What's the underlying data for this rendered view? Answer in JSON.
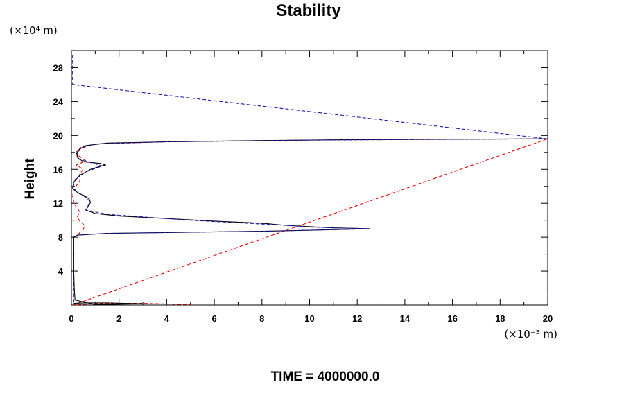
{
  "chart_data": {
    "type": "line",
    "title": "Stability",
    "ylabel": "Height",
    "xlabel": "",
    "x_unit": "(×10⁻⁵ m)",
    "y_unit": "(×10⁴ m)",
    "footer": "TIME = 4000000.0",
    "xlim": [
      0,
      20
    ],
    "ylim": [
      0,
      30
    ],
    "x_ticks": [
      "0",
      "2",
      "4",
      "6",
      "8",
      "10",
      "12",
      "14",
      "16",
      "18",
      "20"
    ],
    "y_ticks": [
      "4",
      "8",
      "12",
      "16",
      "20",
      "24",
      "28"
    ],
    "grid": false,
    "legend": "none",
    "colors": {
      "solid": "#000000",
      "blue_dashed": "#1a1aaa",
      "red_dashed": "#e60000",
      "axis": "#000000"
    },
    "series": [
      {
        "style": "solid-black",
        "points": [
          [
            0.1,
            0.2
          ],
          [
            0.5,
            0.25
          ],
          [
            1.5,
            0.25
          ],
          [
            3.0,
            0.15
          ],
          [
            1.0,
            0.05
          ],
          [
            0.15,
            0.6
          ],
          [
            0.12,
            2
          ],
          [
            0.1,
            4
          ],
          [
            0.1,
            6
          ],
          [
            0.1,
            7.5
          ],
          [
            0.1,
            8.0
          ],
          [
            0.25,
            8.25
          ],
          [
            1.5,
            8.45
          ],
          [
            4,
            8.55
          ],
          [
            8,
            8.7
          ],
          [
            10.5,
            8.85
          ],
          [
            12.55,
            9.0
          ],
          [
            11,
            9.1
          ],
          [
            9,
            9.4
          ],
          [
            8,
            9.65
          ],
          [
            6,
            9.9
          ],
          [
            4,
            10.2
          ],
          [
            2,
            10.5
          ],
          [
            1.0,
            10.8
          ],
          [
            0.6,
            11.2
          ],
          [
            0.7,
            11.6
          ],
          [
            0.8,
            12.1
          ],
          [
            0.75,
            12.5
          ],
          [
            0.55,
            12.9
          ],
          [
            0.35,
            13.1
          ],
          [
            0.15,
            13.5
          ],
          [
            0.05,
            13.8
          ],
          [
            0.1,
            14.5
          ],
          [
            0.35,
            15.3
          ],
          [
            0.8,
            16.0
          ],
          [
            1.25,
            16.4
          ],
          [
            1.45,
            16.5
          ],
          [
            1.2,
            16.7
          ],
          [
            0.5,
            16.9
          ],
          [
            0.25,
            17.4
          ],
          [
            0.22,
            17.9
          ],
          [
            0.35,
            18.4
          ],
          [
            0.6,
            18.8
          ],
          [
            1.5,
            19.1
          ],
          [
            4,
            19.25
          ],
          [
            8,
            19.4
          ],
          [
            12,
            19.5
          ],
          [
            16,
            19.55
          ],
          [
            20,
            19.6
          ]
        ]
      },
      {
        "style": "dashed-blue",
        "points": [
          [
            0.1,
            0.3
          ],
          [
            0.08,
            4
          ],
          [
            0.08,
            7.9
          ],
          [
            0.25,
            8.25
          ],
          [
            1.5,
            8.45
          ],
          [
            4,
            8.55
          ],
          [
            8,
            8.7
          ],
          [
            10.5,
            8.85
          ],
          [
            12.5,
            9.0
          ],
          [
            10,
            9.2
          ],
          [
            9,
            9.4
          ],
          [
            7,
            9.7
          ],
          [
            5,
            10.0
          ],
          [
            3,
            10.4
          ],
          [
            1.5,
            10.7
          ],
          [
            0.6,
            11.2
          ],
          [
            0.7,
            11.7
          ],
          [
            0.75,
            12.3
          ],
          [
            0.5,
            12.9
          ],
          [
            0.2,
            13.4
          ],
          [
            0.08,
            13.9
          ],
          [
            0.15,
            14.8
          ],
          [
            0.6,
            15.7
          ],
          [
            1.3,
            16.4
          ],
          [
            0.8,
            16.8
          ],
          [
            0.3,
            17.2
          ],
          [
            0.25,
            17.9
          ],
          [
            0.4,
            18.5
          ],
          [
            1.0,
            19.0
          ],
          [
            4,
            19.25
          ],
          [
            10,
            19.45
          ],
          [
            20,
            19.6
          ],
          [
            0.05,
            26
          ],
          [
            0.05,
            29.5
          ]
        ]
      },
      {
        "style": "dashed-red",
        "points": [
          [
            0.1,
            8.0
          ],
          [
            0.3,
            8.4
          ],
          [
            0.5,
            8.9
          ],
          [
            0.55,
            9.4
          ],
          [
            0.35,
            9.9
          ],
          [
            0.25,
            10.4
          ],
          [
            0.35,
            11.0
          ],
          [
            0.15,
            11.8
          ],
          [
            0.05,
            12.6
          ],
          [
            0.08,
            13.6
          ],
          [
            0.35,
            14.6
          ],
          [
            0.35,
            15.5
          ],
          [
            0.5,
            16.0
          ],
          [
            0.2,
            16.5
          ],
          [
            0.6,
            17.0
          ],
          [
            0.3,
            17.6
          ],
          [
            0.22,
            18.1
          ],
          [
            0.4,
            18.6
          ],
          [
            1.0,
            19.0
          ],
          [
            4,
            19.25
          ],
          [
            10,
            19.45
          ],
          [
            20,
            19.6
          ],
          [
            0.1,
            0.05
          ],
          [
            1.5,
            0.2
          ],
          [
            3,
            0.2
          ],
          [
            5,
            0.05
          ]
        ]
      }
    ]
  }
}
